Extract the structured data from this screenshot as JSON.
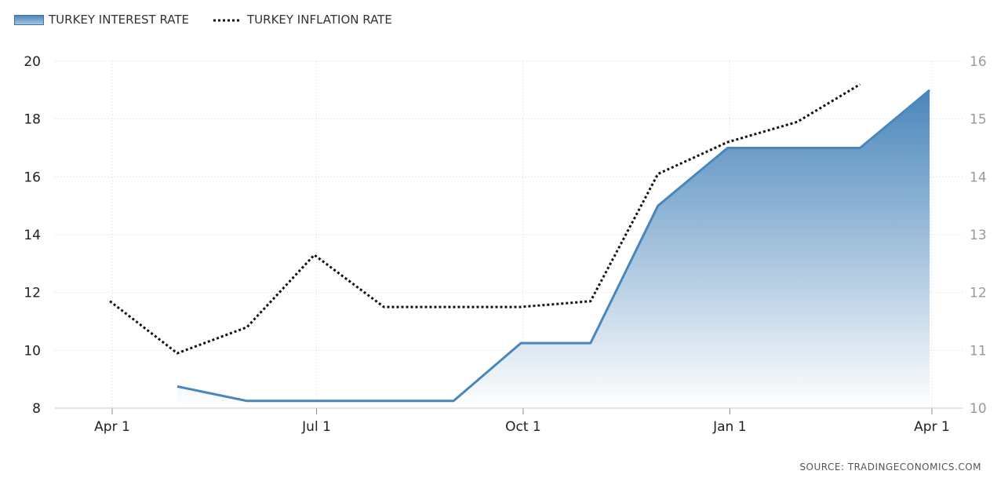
{
  "legend": {
    "interest_label": "TURKEY INTEREST RATE",
    "inflation_label": "TURKEY INFLATION RATE"
  },
  "source": "SOURCE:  TRADINGECONOMICS.COM",
  "colors": {
    "interest_line": "#4a86bb",
    "interest_fill_top": "#4a86bb",
    "interest_fill_bottom": "#ffffff",
    "inflation_line": "#111111",
    "grid": "#d4d4d4",
    "left_axis_text": "#222222",
    "right_axis_text": "#999999"
  },
  "chart_data": {
    "type": "line",
    "x_ticks": [
      "Apr 1",
      "Jul 1",
      "Oct 1",
      "Jan 1",
      "Apr 1"
    ],
    "grid": true,
    "legend_position": "top-left",
    "series": [
      {
        "name": "TURKEY INTEREST RATE",
        "type": "area",
        "axis": "left",
        "x": [
          "2018-04-30",
          "2018-05-31",
          "2018-06-30",
          "2018-07-31",
          "2018-08-31",
          "2018-09-30",
          "2018-10-31",
          "2018-11-30",
          "2018-12-31",
          "2019-01-31",
          "2019-02-28",
          "2019-03-31"
        ],
        "values": [
          8.75,
          8.25,
          8.25,
          8.25,
          8.25,
          10.25,
          10.25,
          15.0,
          17.0,
          17.0,
          17.0,
          19.0
        ]
      },
      {
        "name": "TURKEY INFLATION RATE",
        "type": "line",
        "axis": "right",
        "x": [
          "2018-03-31",
          "2018-04-30",
          "2018-05-31",
          "2018-06-30",
          "2018-07-31",
          "2018-08-31",
          "2018-09-30",
          "2018-10-31",
          "2018-11-30",
          "2018-12-31",
          "2019-01-31",
          "2019-02-28"
        ],
        "values": [
          11.85,
          10.95,
          11.4,
          12.65,
          11.75,
          11.75,
          11.75,
          11.85,
          14.05,
          14.6,
          14.95,
          15.6
        ]
      }
    ],
    "y_left": {
      "min": 8,
      "max": 20,
      "ticks": [
        8,
        10,
        12,
        14,
        16,
        18,
        20
      ]
    },
    "y_right": {
      "min": 10,
      "max": 16,
      "ticks": [
        10,
        11,
        12,
        13,
        14,
        15,
        16
      ]
    },
    "x_range": [
      "2018-04-01",
      "2019-04-01"
    ],
    "x_tick_dates": [
      "2018-04-01",
      "2018-07-01",
      "2018-10-01",
      "2019-01-01",
      "2019-04-01"
    ]
  }
}
